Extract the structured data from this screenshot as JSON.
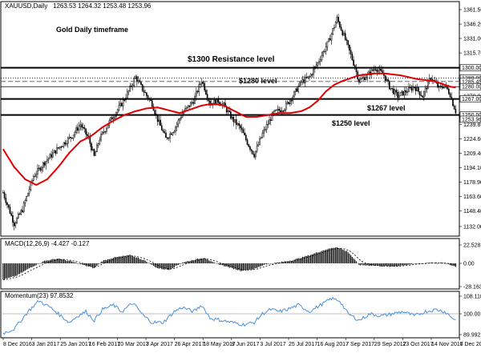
{
  "chart_data": {
    "type": "candlestick",
    "symbol_header": "XAUUSD,Daily",
    "ohlc_header": "1263.53 1264.32 1253.48 1253.96",
    "annotation_title": "Gold Daily timeframe",
    "levels": [
      {
        "value": 1300,
        "label": "$1300 Resistance level",
        "axis_label": "1300.00",
        "style": "thick"
      },
      {
        "value": 1289,
        "label": "",
        "axis_label": "1289.00",
        "style": "dotted"
      },
      {
        "value": 1285.45,
        "label": "",
        "axis_label": "1285.45",
        "style": "dashed"
      },
      {
        "value": 1280,
        "label": "$1280 level",
        "axis_label": "1280.00",
        "style": "thin"
      },
      {
        "value": 1267,
        "label": "$1267 level",
        "axis_label": "1267.00",
        "style": "thick"
      },
      {
        "value": 1250,
        "label": "$1250 level",
        "axis_label": "1250.00",
        "style": "thick"
      }
    ],
    "current_price_label": "1253.96",
    "y_ticks": [
      "1361.50",
      "1346.20",
      "1331.00",
      "1315.70",
      "1300.00",
      "1285.45",
      "1270.00",
      "1239.85",
      "1224.60",
      "1209.40",
      "1194.10",
      "1178.90",
      "1163.60",
      "1148.40",
      "1132.00"
    ],
    "x_ticks": [
      "8 Dec 2016",
      "3 Jan 2017",
      "25 Jan 2017",
      "16 Feb 2017",
      "10 Mar 2017",
      "3 Apr 2017",
      "26 Apr 2017",
      "18 May 2017",
      "9 Jun 2017",
      "3 Jul 2017",
      "25 Jul 2017",
      "16 Aug 2017",
      "7 Sep 2017",
      "29 Sep 2017",
      "23 Oct 2017",
      "14 Nov 2017",
      "6 Dec 2017"
    ],
    "price_anchors": [
      [
        0,
        1168
      ],
      [
        8,
        1135
      ],
      [
        14,
        1150
      ],
      [
        22,
        1185
      ],
      [
        30,
        1200
      ],
      [
        40,
        1215
      ],
      [
        50,
        1228
      ],
      [
        56,
        1240
      ],
      [
        62,
        1225
      ],
      [
        66,
        1206
      ],
      [
        70,
        1225
      ],
      [
        78,
        1245
      ],
      [
        86,
        1262
      ],
      [
        92,
        1278
      ],
      [
        96,
        1290
      ],
      [
        102,
        1275
      ],
      [
        108,
        1262
      ],
      [
        112,
        1245
      ],
      [
        118,
        1225
      ],
      [
        124,
        1235
      ],
      [
        130,
        1252
      ],
      [
        138,
        1265
      ],
      [
        144,
        1287
      ],
      [
        150,
        1262
      ],
      [
        156,
        1265
      ],
      [
        160,
        1260
      ],
      [
        166,
        1246
      ],
      [
        172,
        1236
      ],
      [
        178,
        1218
      ],
      [
        182,
        1208
      ],
      [
        188,
        1230
      ],
      [
        196,
        1252
      ],
      [
        204,
        1258
      ],
      [
        210,
        1270
      ],
      [
        216,
        1285
      ],
      [
        222,
        1290
      ],
      [
        228,
        1305
      ],
      [
        236,
        1328
      ],
      [
        242,
        1352
      ],
      [
        248,
        1330
      ],
      [
        254,
        1305
      ],
      [
        258,
        1286
      ],
      [
        264,
        1292
      ],
      [
        270,
        1300
      ],
      [
        276,
        1292
      ],
      [
        280,
        1280
      ],
      [
        286,
        1270
      ],
      [
        292,
        1275
      ],
      [
        298,
        1280
      ],
      [
        304,
        1270
      ],
      [
        310,
        1290
      ],
      [
        316,
        1278
      ],
      [
        320,
        1282
      ],
      [
        324,
        1272
      ],
      [
        326,
        1262
      ],
      [
        328,
        1254
      ]
    ],
    "ma_anchors": [
      [
        0,
        1214
      ],
      [
        8,
        1195
      ],
      [
        16,
        1182
      ],
      [
        24,
        1176
      ],
      [
        32,
        1182
      ],
      [
        40,
        1195
      ],
      [
        48,
        1210
      ],
      [
        56,
        1222
      ],
      [
        64,
        1228
      ],
      [
        72,
        1237
      ],
      [
        80,
        1244
      ],
      [
        88,
        1250
      ],
      [
        96,
        1254
      ],
      [
        104,
        1257
      ],
      [
        112,
        1258
      ],
      [
        120,
        1255
      ],
      [
        128,
        1252
      ],
      [
        136,
        1256
      ],
      [
        144,
        1260
      ],
      [
        152,
        1262
      ],
      [
        160,
        1260
      ],
      [
        168,
        1254
      ],
      [
        176,
        1248
      ],
      [
        184,
        1248
      ],
      [
        192,
        1250
      ],
      [
        200,
        1252
      ],
      [
        208,
        1252
      ],
      [
        216,
        1254
      ],
      [
        222,
        1258
      ],
      [
        228,
        1265
      ],
      [
        234,
        1275
      ],
      [
        240,
        1282
      ],
      [
        246,
        1286
      ],
      [
        252,
        1289
      ],
      [
        258,
        1292
      ],
      [
        264,
        1293
      ],
      [
        270,
        1294
      ],
      [
        276,
        1294
      ],
      [
        282,
        1293
      ],
      [
        288,
        1292
      ],
      [
        294,
        1290
      ],
      [
        300,
        1288
      ],
      [
        306,
        1287
      ],
      [
        312,
        1286
      ],
      [
        318,
        1283
      ],
      [
        324,
        1280
      ],
      [
        328,
        1279
      ]
    ],
    "bars_total": 330,
    "macd": {
      "header": "MACD(12,26,9) -4.427 -0.127",
      "y_ticks": [
        "22.528",
        "0.00",
        "-28.163"
      ],
      "anchors": [
        [
          0,
          -20
        ],
        [
          10,
          -15
        ],
        [
          20,
          -5
        ],
        [
          30,
          3
        ],
        [
          40,
          6
        ],
        [
          50,
          2
        ],
        [
          60,
          -3
        ],
        [
          66,
          -6
        ],
        [
          72,
          3
        ],
        [
          80,
          7
        ],
        [
          92,
          10
        ],
        [
          102,
          4
        ],
        [
          112,
          -6
        ],
        [
          120,
          -8
        ],
        [
          130,
          1
        ],
        [
          140,
          5
        ],
        [
          146,
          7
        ],
        [
          152,
          1
        ],
        [
          162,
          -4
        ],
        [
          172,
          -9
        ],
        [
          182,
          -7
        ],
        [
          190,
          -1
        ],
        [
          200,
          1
        ],
        [
          210,
          4
        ],
        [
          222,
          10
        ],
        [
          234,
          17
        ],
        [
          242,
          20
        ],
        [
          250,
          14
        ],
        [
          258,
          -2
        ],
        [
          270,
          -3
        ],
        [
          282,
          -4
        ],
        [
          296,
          -1
        ],
        [
          310,
          1
        ],
        [
          320,
          0
        ],
        [
          328,
          -4
        ]
      ]
    },
    "momentum": {
      "header": "Momentum(23) 97.8532",
      "y_ticks": [
        "108.1107",
        "100.00",
        "89.992"
      ],
      "anchors": [
        [
          0,
          91
        ],
        [
          8,
          93
        ],
        [
          18,
          101
        ],
        [
          26,
          106
        ],
        [
          34,
          103
        ],
        [
          42,
          99
        ],
        [
          48,
          96
        ],
        [
          54,
          99
        ],
        [
          60,
          101
        ],
        [
          66,
          97
        ],
        [
          72,
          102
        ],
        [
          80,
          104
        ],
        [
          86,
          101
        ],
        [
          94,
          105
        ],
        [
          102,
          99
        ],
        [
          108,
          96
        ],
        [
          116,
          96
        ],
        [
          124,
          101
        ],
        [
          130,
          103
        ],
        [
          138,
          101
        ],
        [
          144,
          104
        ],
        [
          150,
          98
        ],
        [
          158,
          97
        ],
        [
          166,
          96
        ],
        [
          174,
          95
        ],
        [
          182,
          96
        ],
        [
          188,
          100
        ],
        [
          194,
          102
        ],
        [
          200,
          101
        ],
        [
          206,
          102
        ],
        [
          214,
          104
        ],
        [
          222,
          101
        ],
        [
          230,
          104
        ],
        [
          238,
          107
        ],
        [
          244,
          106
        ],
        [
          250,
          100
        ],
        [
          258,
          97
        ],
        [
          266,
          100
        ],
        [
          274,
          99
        ],
        [
          282,
          100
        ],
        [
          290,
          101
        ],
        [
          298,
          99
        ],
        [
          306,
          101
        ],
        [
          314,
          102
        ],
        [
          320,
          101
        ],
        [
          326,
          98
        ],
        [
          328,
          97
        ]
      ]
    },
    "colors": {
      "up": "#ffffff",
      "down": "#000000",
      "wick": "#000000",
      "ma": "#e00000",
      "momentum": "#4a90d9",
      "macd_signal": "#000000"
    }
  }
}
